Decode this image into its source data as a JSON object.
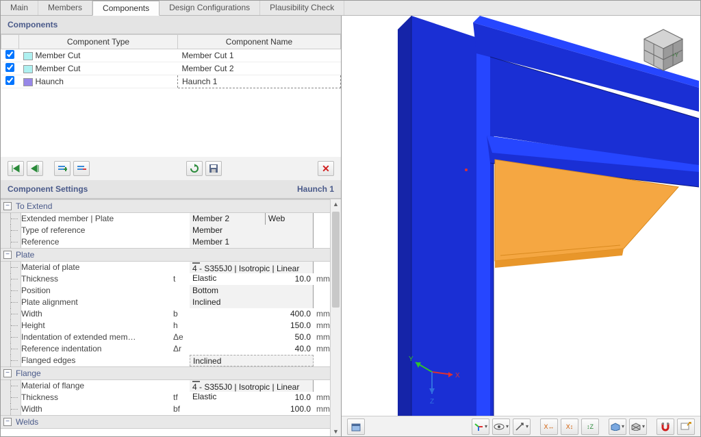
{
  "tabs": [
    "Main",
    "Members",
    "Components",
    "Design Configurations",
    "Plausibility Check"
  ],
  "active_tab": 2,
  "components_panel": {
    "title": "Components",
    "headers": [
      "Component Type",
      "Component Name"
    ],
    "rows": [
      {
        "checked": true,
        "swatch": "#aef0f0",
        "type": "Member Cut",
        "name": "Member Cut 1",
        "selected": false
      },
      {
        "checked": true,
        "swatch": "#aef0f0",
        "type": "Member Cut",
        "name": "Member Cut 2",
        "selected": false
      },
      {
        "checked": true,
        "swatch": "#9787e8",
        "type": "Haunch",
        "name": "Haunch 1",
        "selected": true
      }
    ]
  },
  "settings_panel": {
    "title": "Component Settings",
    "subtitle": "Haunch 1",
    "groups": [
      {
        "name": "To Extend",
        "rows": [
          {
            "label": "Extended member | Plate",
            "sym": "",
            "val": "Member 2",
            "val2": "Web",
            "unit": "",
            "align": "left"
          },
          {
            "label": "Type of reference",
            "sym": "",
            "val": "Member",
            "unit": "",
            "align": "left"
          },
          {
            "label": "Reference",
            "sym": "",
            "val": "Member 1",
            "unit": "",
            "align": "left"
          }
        ]
      },
      {
        "name": "Plate",
        "rows": [
          {
            "label": "Material of plate",
            "sym": "",
            "val": "4 - S355J0 | Isotropic | Linear Elastic",
            "unit": "",
            "align": "left",
            "material": true
          },
          {
            "label": "Thickness",
            "sym": "t",
            "val": "10.0",
            "unit": "mm"
          },
          {
            "label": "Position",
            "sym": "",
            "val": "Bottom",
            "unit": "",
            "align": "left"
          },
          {
            "label": "Plate alignment",
            "sym": "",
            "val": "Inclined",
            "unit": "",
            "align": "left"
          },
          {
            "label": "Width",
            "sym": "b",
            "val": "400.0",
            "unit": "mm"
          },
          {
            "label": "Height",
            "sym": "h",
            "val": "150.0",
            "unit": "mm"
          },
          {
            "label": "Indentation of extended mem…",
            "sym": "Δe",
            "val": "50.0",
            "unit": "mm"
          },
          {
            "label": "Reference indentation",
            "sym": "Δr",
            "val": "40.0",
            "unit": "mm"
          },
          {
            "label": "Flanged edges",
            "sym": "",
            "val": "Inclined",
            "unit": "",
            "align": "left",
            "dashed": true
          }
        ]
      },
      {
        "name": "Flange",
        "rows": [
          {
            "label": "Material of flange",
            "sym": "",
            "val": "4 - S355J0 | Isotropic | Linear Elastic",
            "unit": "",
            "align": "left",
            "material": true
          },
          {
            "label": "Thickness",
            "sym": "tf",
            "val": "10.0",
            "unit": "mm"
          },
          {
            "label": "Width",
            "sym": "bf",
            "val": "100.0",
            "unit": "mm"
          }
        ]
      },
      {
        "name": "Welds",
        "rows": []
      }
    ]
  },
  "colors": {
    "steel_blue": "#1a2fd4",
    "steel_highlight": "#2646ff",
    "haunch_orange": "#f5a742",
    "haunch_edge": "#d98a1f",
    "cube_gray": "#9a9a9a",
    "axis_x": "#e03030",
    "axis_y": "#30c030",
    "axis_z": "#3070e0"
  },
  "view_toolbar": {
    "left_button": "restore-view",
    "buttons": [
      "axes-toggle",
      "view-eye",
      "direction",
      "xy-plane",
      "xz-plane",
      "yz-plane",
      "display-mode",
      "wireframe",
      "",
      "magnet",
      "new-window"
    ]
  }
}
